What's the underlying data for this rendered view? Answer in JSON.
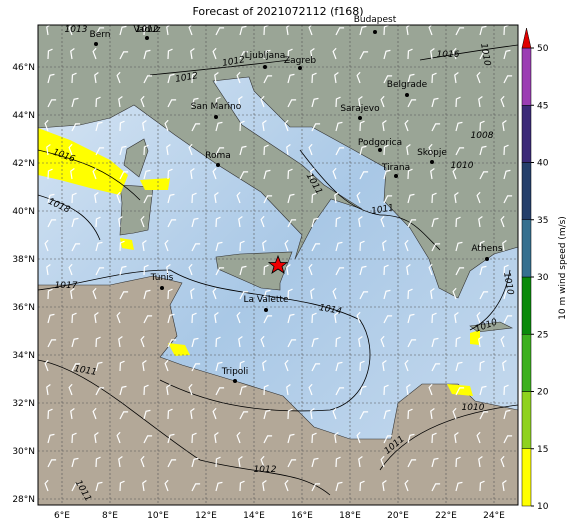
{
  "title": "Forecast of 2021072112 (f168)",
  "lon_ticks": [
    "6°E",
    "8°E",
    "10°E",
    "12°E",
    "14°E",
    "16°E",
    "18°E",
    "20°E",
    "22°E",
    "24°E"
  ],
  "lat_ticks": [
    "28°N",
    "30°N",
    "32°N",
    "34°N",
    "36°N",
    "38°N",
    "40°N",
    "42°N",
    "44°N",
    "46°N"
  ],
  "cities": [
    "Bern",
    "Vaduz",
    "Ljubljana",
    "Zagreb",
    "Budapest",
    "Belgrade",
    "San Marino",
    "Sarajevo",
    "Podgorica",
    "Skopje",
    "Roma",
    "Tirana",
    "Athens",
    "Tunis",
    "La Valette",
    "Tripoli"
  ],
  "isobar_labels": [
    "1016",
    "1018",
    "1017",
    "1011",
    "1012",
    "1010",
    "1011",
    "1014",
    "1010",
    "1010",
    "1011",
    "1012",
    "1012",
    "1016",
    "1010",
    "1008",
    "1010",
    "1013",
    "1012",
    "1011",
    "1011"
  ],
  "colorbar": {
    "label": "10 m wind speed (m/s)",
    "ticks": [
      10,
      15,
      20,
      25,
      30,
      35,
      40,
      45,
      50
    ]
  }
}
